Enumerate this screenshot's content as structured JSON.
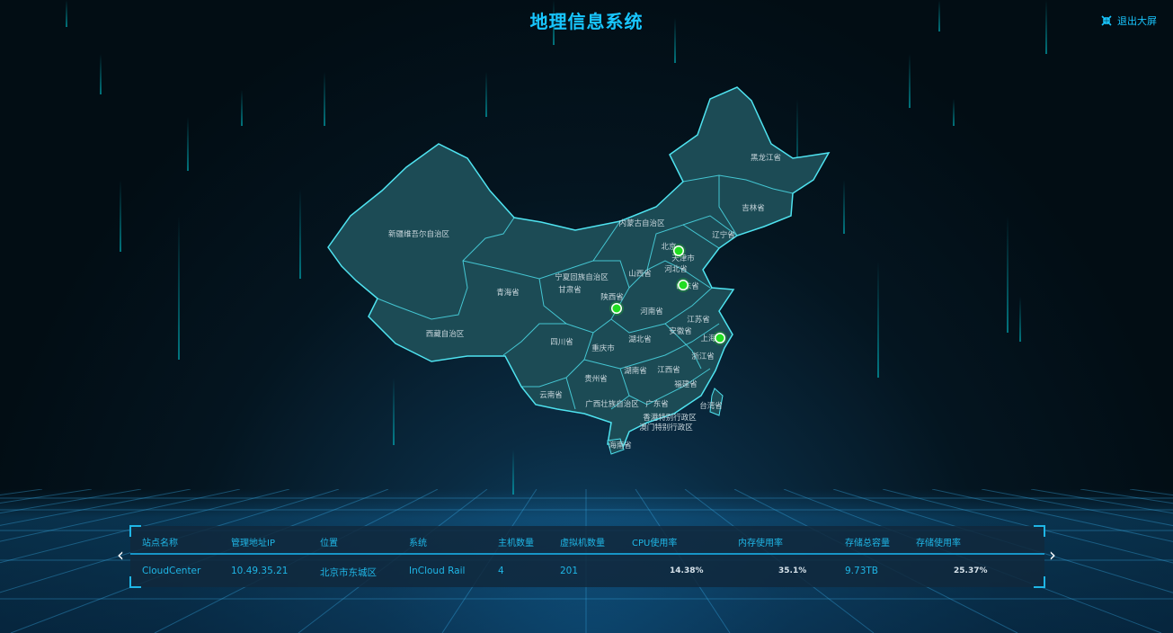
{
  "header": {
    "title": "地理信息系统",
    "exit_label": "退出大屏",
    "exit_icon": "shrink-icon"
  },
  "map": {
    "provinces": [
      "新疆维吾尔自治区",
      "西藏自治区",
      "青海省",
      "甘肃省",
      "内蒙古自治区",
      "黑龙江省",
      "吉林省",
      "辽宁省",
      "北京",
      "天津市",
      "河北省",
      "山西省",
      "宁夏回族自治区",
      "陕西省",
      "山东省",
      "河南省",
      "江苏省",
      "安徽省",
      "上海",
      "四川省",
      "重庆市",
      "湖北省",
      "浙江省",
      "湖南省",
      "江西省",
      "贵州省",
      "云南省",
      "福建省",
      "台湾省",
      "广西壮族自治区",
      "广东省",
      "香港特别行政区",
      "澳门特别行政区",
      "海南省"
    ],
    "marker_color": "#22dd22",
    "land_color": "#1c4b55",
    "border_color": "#4fe3f0"
  },
  "table": {
    "headers": [
      "站点名称",
      "管理地址IP",
      "位置",
      "系统",
      "主机数量",
      "虚拟机数量",
      "CPU使用率",
      "内存使用率",
      "存储总容量",
      "存储使用率"
    ],
    "rows": [
      [
        "CloudCenter",
        "10.49.35.21",
        "北京市东城区",
        "InCloud Rail",
        "4",
        "201",
        "14.38%",
        "35.1%",
        "9.73TB",
        "25.37%"
      ]
    ]
  },
  "nav": {
    "prev_icon": "chevron-left-icon",
    "next_icon": "chevron-right-icon"
  }
}
